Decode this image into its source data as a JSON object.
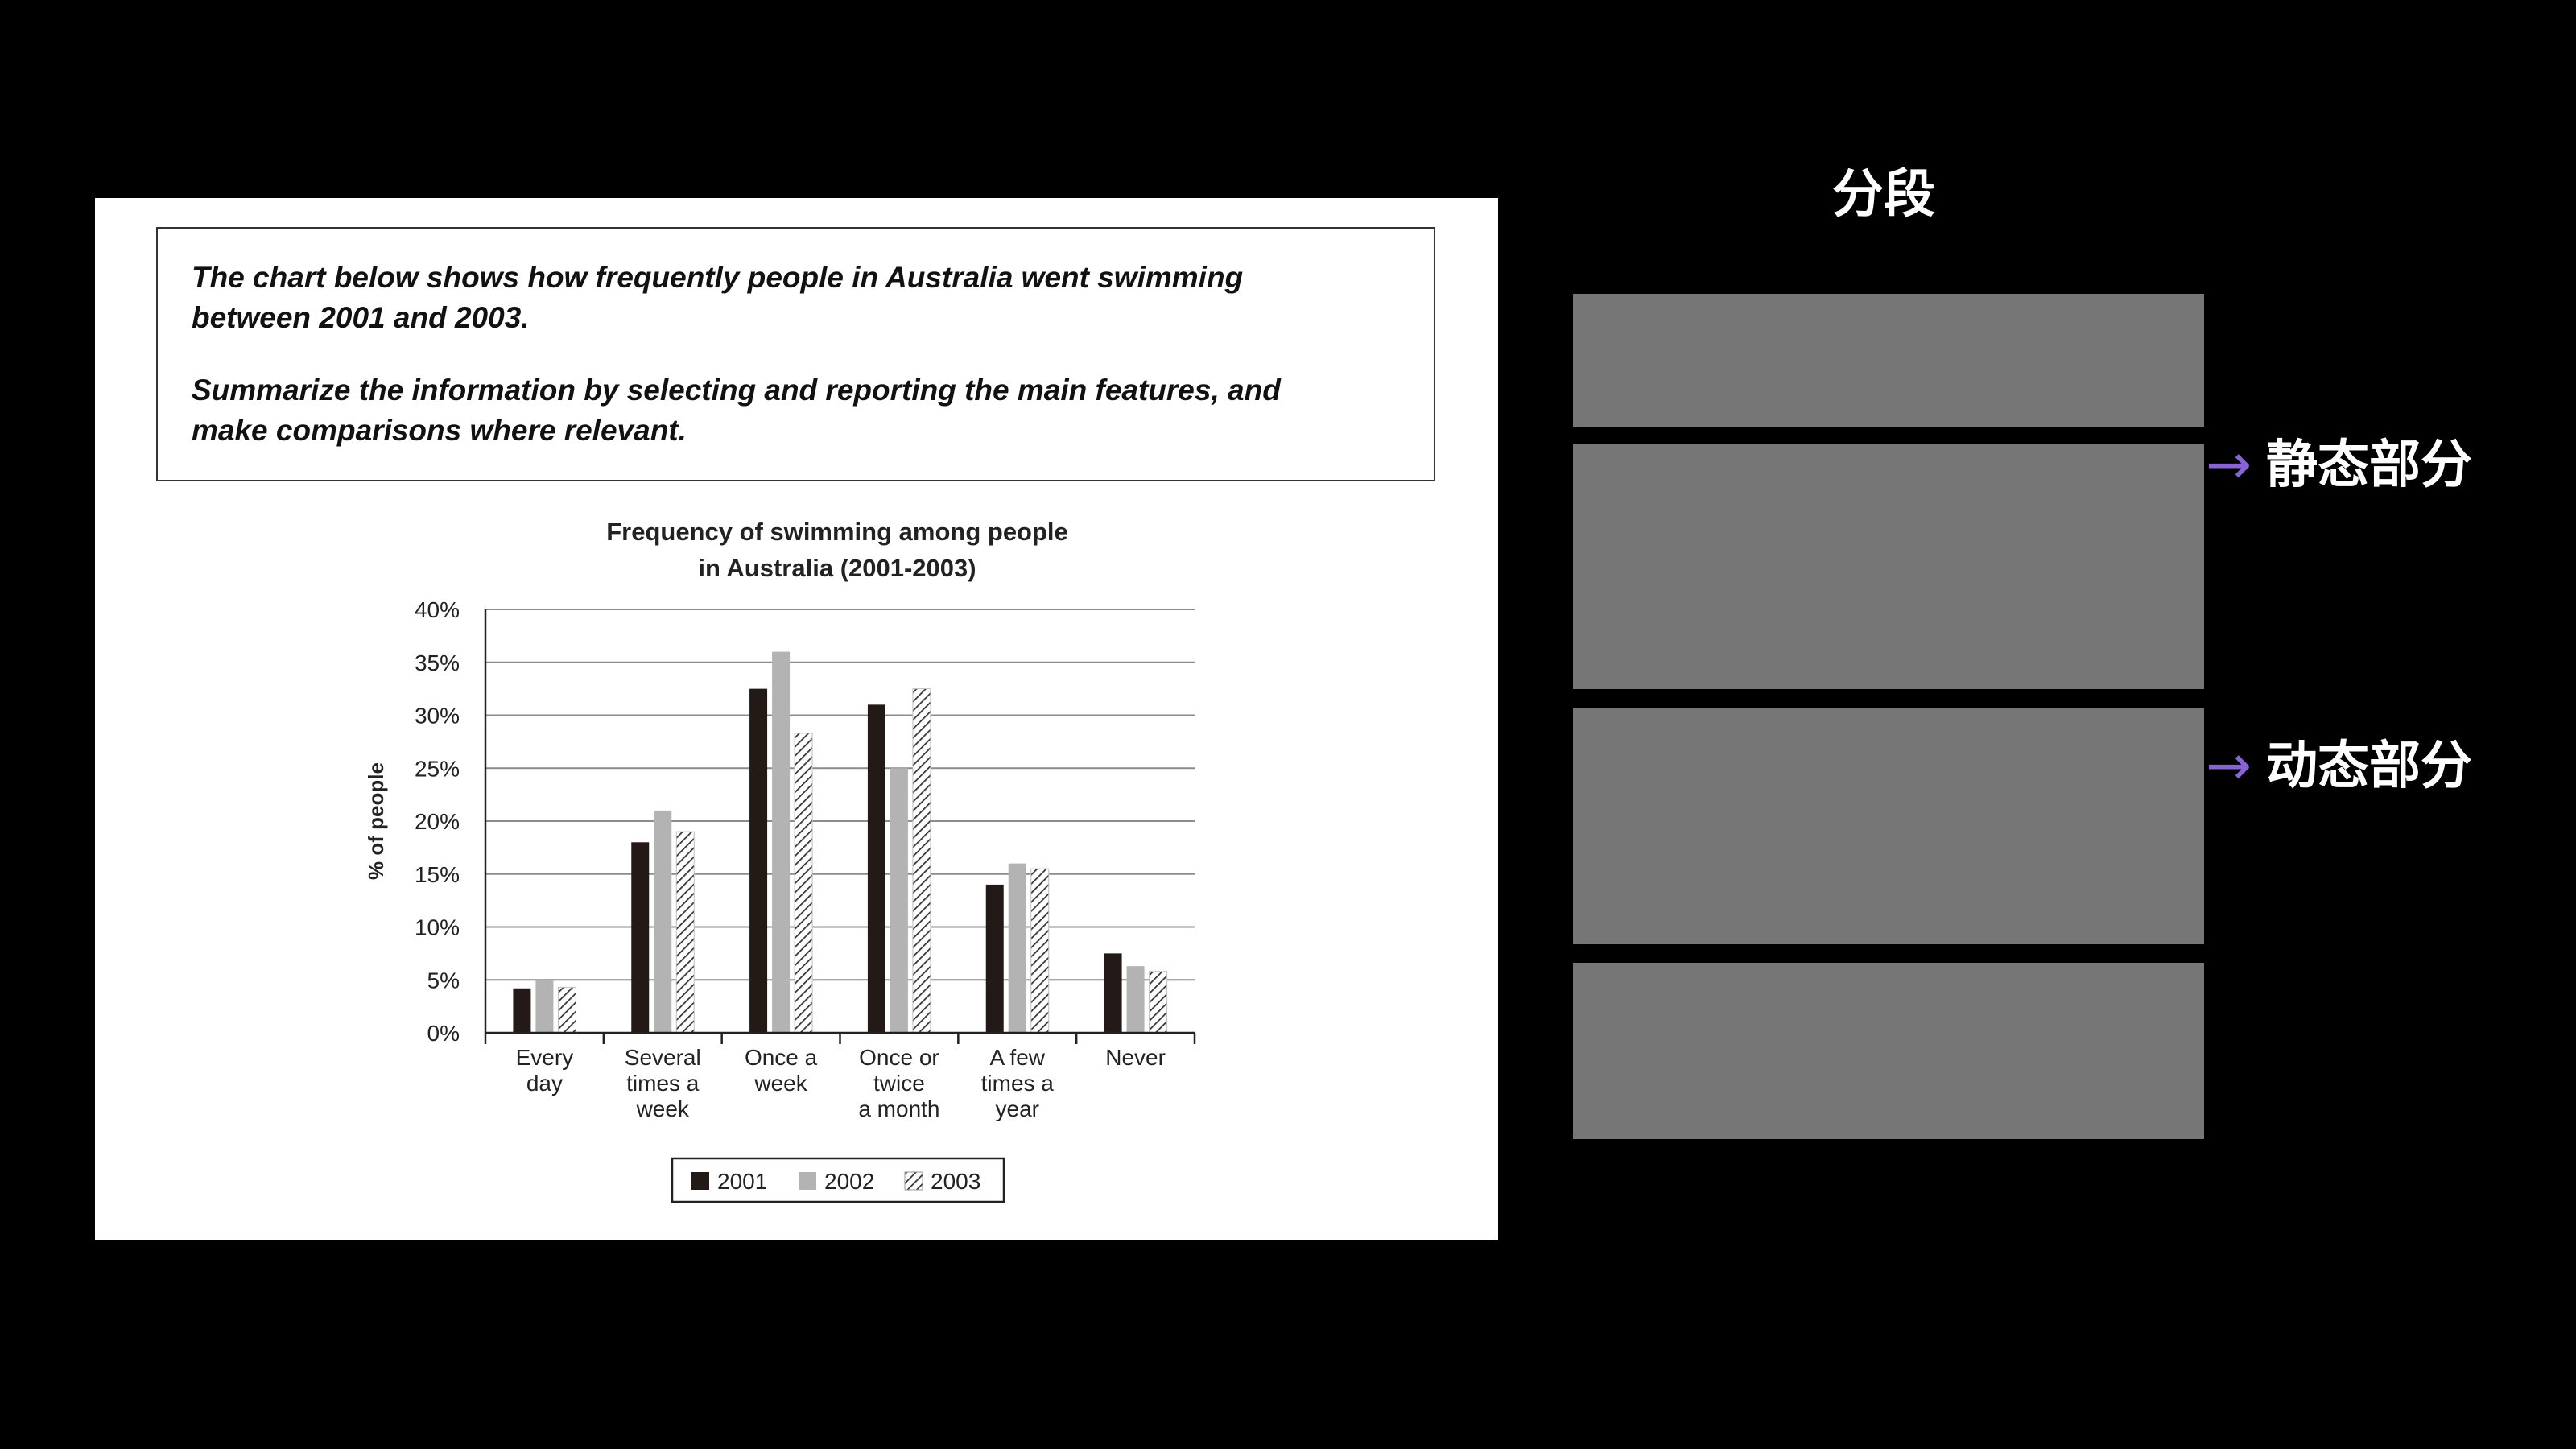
{
  "prompt": {
    "line1": "The chart below shows how frequently people in Australia went swimming",
    "line2": "between 2001 and 2003.",
    "line3": "Summarize the information by selecting and reporting the main features, and",
    "line4": "make comparisons where relevant."
  },
  "chart_data": {
    "type": "bar",
    "title_lines": [
      "Frequency of swimming among people",
      "in Australia (2001-2003)"
    ],
    "ylabel": "% of people",
    "xlabel": "",
    "ylim": [
      0,
      40
    ],
    "yticks": [
      0,
      5,
      10,
      15,
      20,
      25,
      30,
      35,
      40
    ],
    "ytick_suffix": "%",
    "grid": true,
    "legend_position": "bottom-center",
    "categories": [
      [
        "Every",
        "day"
      ],
      [
        "Several",
        "times a",
        "week"
      ],
      [
        "Once a",
        "week"
      ],
      [
        "Once or",
        "twice",
        "a month"
      ],
      [
        "A few",
        "times a",
        "year"
      ],
      [
        "Never"
      ]
    ],
    "series": [
      {
        "name": "2001",
        "color": "#231a17",
        "pattern": "solid-dark",
        "values": [
          4.2,
          18,
          32.5,
          31,
          14,
          7.5
        ]
      },
      {
        "name": "2002",
        "color": "#b3b3b3",
        "pattern": "solid-light",
        "values": [
          5,
          21,
          36,
          25,
          16,
          6.3
        ]
      },
      {
        "name": "2003",
        "color": "#ffffff",
        "pattern": "hatched",
        "values": [
          4.3,
          19,
          28.3,
          32.5,
          15.5,
          5.8
        ]
      }
    ]
  },
  "panel": {
    "title": "分段",
    "label_static": "静态部分",
    "label_dynamic": "动态部分",
    "arrow": "→",
    "accent_color": "#8a63d2",
    "segment_color": "#767676"
  }
}
